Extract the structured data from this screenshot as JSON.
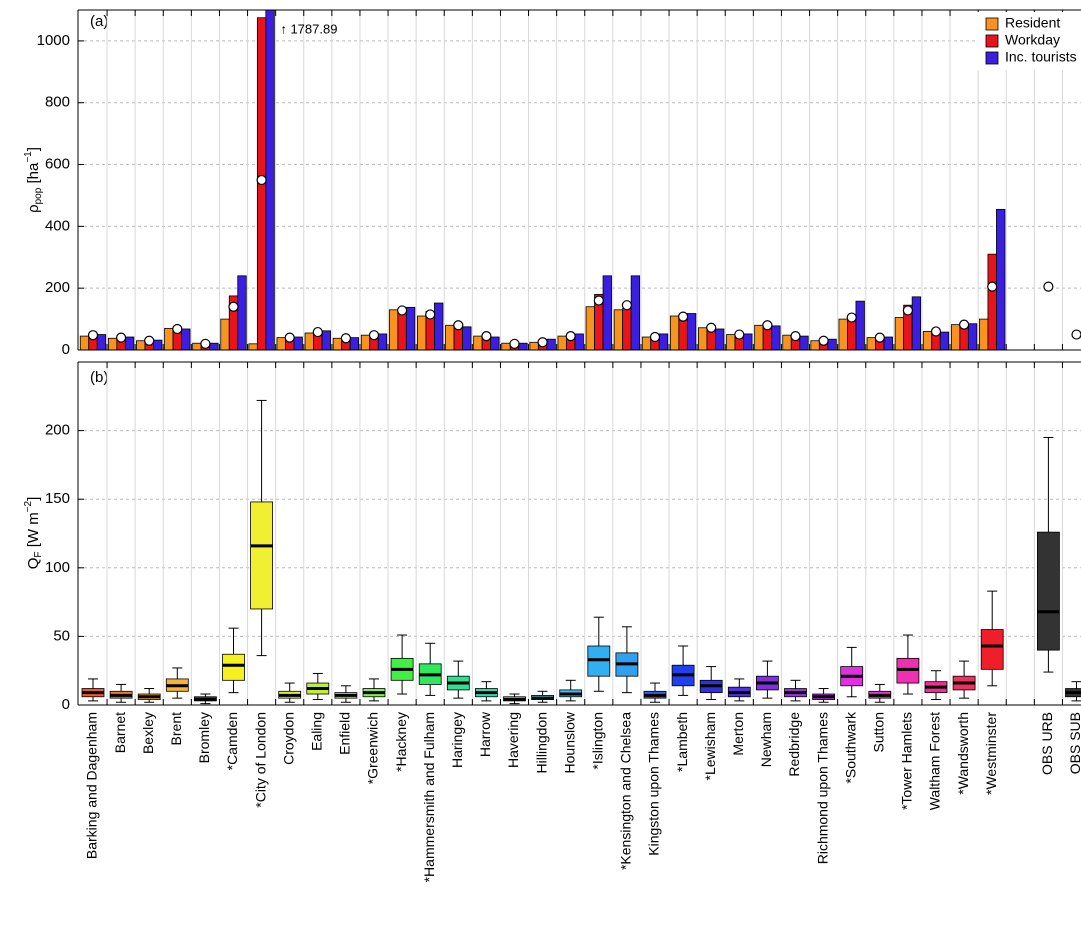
{
  "chart_data": [
    {
      "type": "bar",
      "panel_label": "(a)",
      "ylabel": {
        "base": "ρ",
        "sub": "pop",
        "mid": " [ha",
        "sup": "−1",
        "end": "]"
      },
      "ylim": [
        0,
        1100
      ],
      "yticks": [
        0,
        200,
        400,
        600,
        800,
        1000
      ],
      "grid": true,
      "legend": "upper right",
      "series": [
        {
          "name": "Resident",
          "color": "#f7931e",
          "values": [
            45,
            38,
            30,
            70,
            22,
            100,
            20,
            40,
            55,
            38,
            48,
            130,
            110,
            80,
            45,
            22,
            25,
            45,
            140,
            130,
            42,
            110,
            72,
            50,
            80,
            48,
            30,
            100,
            40,
            105,
            60,
            82,
            100,
            null,
            null,
            null
          ]
        },
        {
          "name": "Workday",
          "color": "#e8141c",
          "values": [
            48,
            40,
            28,
            68,
            20,
            175,
            1075,
            38,
            58,
            36,
            46,
            128,
            125,
            78,
            40,
            20,
            30,
            42,
            180,
            135,
            40,
            110,
            65,
            48,
            78,
            42,
            32,
            105,
            36,
            145,
            55,
            78,
            310,
            null,
            null,
            null
          ]
        },
        {
          "name": "Inc. tourists",
          "color": "#3a1fe0",
          "values": [
            50,
            42,
            32,
            68,
            22,
            240,
            1787.89,
            42,
            62,
            40,
            52,
            138,
            152,
            75,
            42,
            22,
            35,
            52,
            240,
            240,
            52,
            118,
            68,
            52,
            78,
            45,
            35,
            158,
            42,
            172,
            58,
            85,
            455,
            null,
            null,
            null
          ],
          "value_labels": [
            null,
            null,
            null,
            null,
            null,
            null,
            "↑ 1787.89",
            null,
            null,
            null,
            null,
            null,
            null,
            null,
            null,
            null,
            null,
            null,
            null,
            null,
            null,
            null,
            null,
            null,
            null,
            null,
            null,
            null,
            null,
            null,
            null,
            null,
            null,
            null,
            null,
            null
          ],
          "label_color": "#3a3aff"
        }
      ],
      "markers": [
        48,
        40,
        30,
        68,
        20,
        140,
        550,
        40,
        58,
        38,
        48,
        128,
        115,
        80,
        45,
        20,
        25,
        45,
        160,
        145,
        42,
        108,
        72,
        50,
        80,
        45,
        30,
        105,
        40,
        128,
        60,
        82,
        205,
        null,
        205,
        50
      ]
    },
    {
      "type": "box",
      "panel_label": "(b)",
      "ylabel": {
        "base": "Q",
        "sub": "F",
        "mid": " [W m",
        "sup": "−2",
        "end": "]"
      },
      "ylim": [
        0,
        250
      ],
      "yticks": [
        0,
        50,
        100,
        150,
        200
      ],
      "grid": true,
      "categories": [
        "Barking and Dagenham",
        "Barnet",
        "Bexley",
        "Brent",
        "Bromley",
        "*Camden",
        "*City of London",
        "Croydon",
        "Ealing",
        "Enfield",
        "*Greenwich",
        "*Hackney",
        "*Hammersmith and Fulham",
        "Haringey",
        "Harrow",
        "Havering",
        "Hillingdon",
        "Hounslow",
        "*Islington",
        "*Kensington and Chelsea",
        "Kingston upon Thames",
        "*Lambeth",
        "*Lewisham",
        "Merton",
        "Newham",
        "Redbridge",
        "Richmond upon Thames",
        "*Southwark",
        "Sutton",
        "*Tower Hamlets",
        "Waltham Forest",
        "*Wandsworth",
        "*Westminster",
        null,
        "OBS URB",
        "OBS SUB"
      ],
      "values": [
        [
          3,
          6,
          9,
          12,
          19
        ],
        [
          2,
          5,
          7,
          10,
          15
        ],
        [
          2,
          4,
          6,
          8,
          12
        ],
        [
          5,
          10,
          14,
          19,
          27
        ],
        [
          1,
          3,
          4,
          6,
          8
        ],
        [
          9,
          18,
          29,
          37,
          56
        ],
        [
          36,
          70,
          116,
          148,
          222
        ],
        [
          2,
          5,
          7,
          10,
          16
        ],
        [
          4,
          8,
          12,
          16,
          23
        ],
        [
          2,
          5,
          7,
          9,
          14
        ],
        [
          3,
          6,
          9,
          12,
          19
        ],
        [
          8,
          18,
          26,
          34,
          51
        ],
        [
          7,
          15,
          22,
          30,
          45
        ],
        [
          5,
          11,
          16,
          21,
          32
        ],
        [
          3,
          6,
          9,
          12,
          17
        ],
        [
          1,
          3,
          4,
          6,
          8
        ],
        [
          2,
          4,
          5,
          7,
          10
        ],
        [
          3,
          6,
          8,
          11,
          18
        ],
        [
          10,
          21,
          33,
          43,
          64
        ],
        [
          9,
          21,
          30,
          38,
          57
        ],
        [
          2,
          5,
          7,
          10,
          16
        ],
        [
          7,
          14,
          22,
          29,
          43
        ],
        [
          4,
          9,
          14,
          18,
          28
        ],
        [
          3,
          6,
          9,
          13,
          19
        ],
        [
          5,
          11,
          16,
          21,
          32
        ],
        [
          3,
          6,
          9,
          12,
          18
        ],
        [
          2,
          4,
          6,
          8,
          12
        ],
        [
          6,
          14,
          21,
          28,
          42
        ],
        [
          2,
          5,
          7,
          10,
          15
        ],
        [
          8,
          16,
          26,
          34,
          51
        ],
        [
          4,
          9,
          13,
          17,
          25
        ],
        [
          5,
          11,
          16,
          21,
          32
        ],
        [
          14,
          26,
          43,
          55,
          83
        ],
        null,
        [
          24,
          40,
          68,
          126,
          195
        ],
        [
          3,
          6,
          9,
          12,
          17
        ]
      ],
      "colors": [
        "#f05a28",
        "#f37a2c",
        "#f59a30",
        "#f7b23a",
        "#5a3a20",
        "#f5f01e",
        "#f0f030",
        "#d8f030",
        "#c0f030",
        "#a0f040",
        "#80f050",
        "#40f040",
        "#30e860",
        "#30e090",
        "#30d8b0",
        "#30d0c8",
        "#30c8e0",
        "#40c0f0",
        "#30b0f0",
        "#30a0f0",
        "#3060f0",
        "#2040f0",
        "#3030e0",
        "#5030e0",
        "#8030e0",
        "#a030e0",
        "#c030e0",
        "#e030e0",
        "#f030d0",
        "#f030b0",
        "#f03090",
        "#f03060",
        "#f01e2a",
        null,
        "#333333",
        "#333333"
      ]
    }
  ]
}
